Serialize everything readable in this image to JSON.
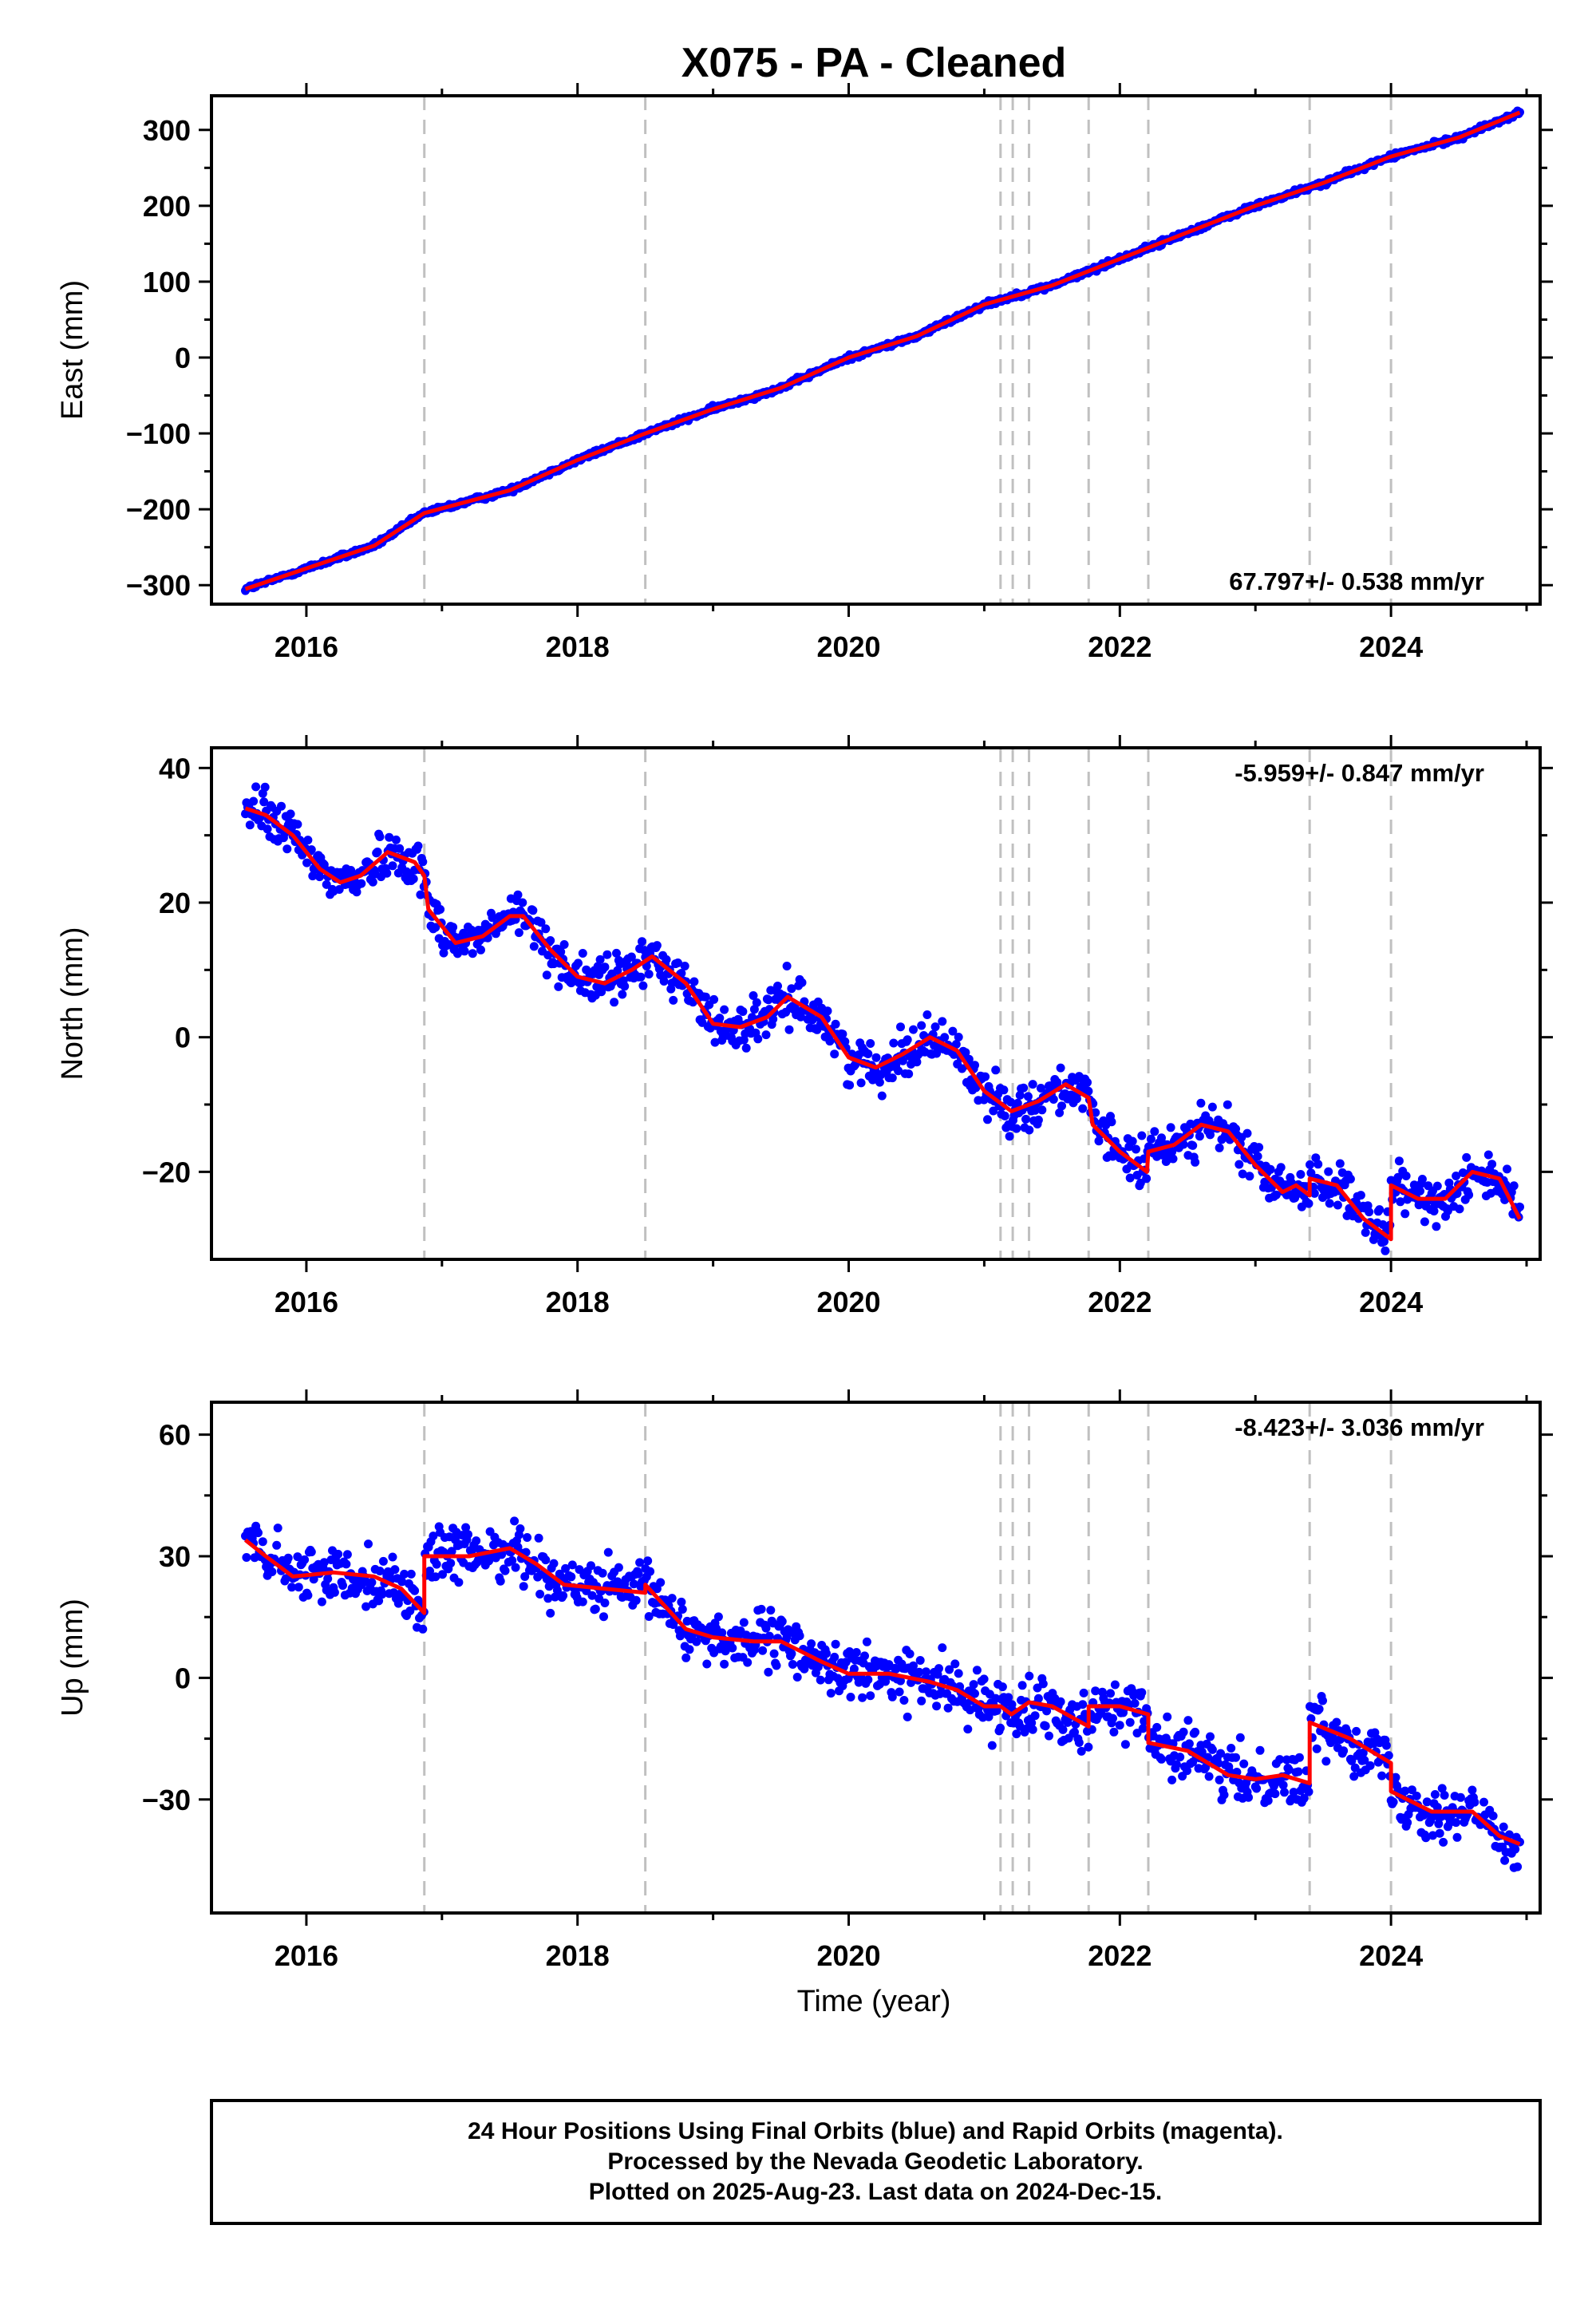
{
  "chart_data": {
    "type": "scatter",
    "title": "X075  - PA - Cleaned",
    "xlabel": "Time (year)",
    "xlim": [
      2015.3,
      2025.1
    ],
    "xticks": [
      2016,
      2018,
      2020,
      2022,
      2024
    ],
    "xtick_labels": [
      "2016",
      "2018",
      "2020",
      "2022",
      "2024"
    ],
    "point_color": "#0000ff",
    "fit_color": "#ff0000",
    "event_line_color": "#c0c0c0",
    "event_lines": [
      2016.87,
      2018.5,
      2021.12,
      2021.21,
      2021.33,
      2021.77,
      2022.21,
      2023.4,
      2024.0
    ],
    "panels": [
      {
        "id": "east",
        "ylabel": "East (mm)",
        "ylim": [
          -325,
          345
        ],
        "yticks": [
          -300,
          -200,
          -100,
          0,
          100,
          200,
          300
        ],
        "ytick_labels": [
          "−300",
          "−200",
          "−100",
          "0",
          "100",
          "200",
          "300"
        ],
        "rate_label": "67.797+/- 0.538 mm/yr",
        "rate_position": "bottom-right",
        "scatter_spread": 4,
        "fit": {
          "x": [
            2015.55,
            2016.0,
            2016.5,
            2016.87,
            2017.5,
            2018.0,
            2018.5,
            2019.0,
            2019.5,
            2020.0,
            2020.5,
            2021.0,
            2021.5,
            2022.0,
            2022.5,
            2023.0,
            2023.5,
            2024.0,
            2024.5,
            2024.95
          ],
          "y": [
            -305,
            -278,
            -248,
            -205,
            -175,
            -135,
            -100,
            -68,
            -40,
            0,
            28,
            70,
            95,
            130,
            165,
            200,
            230,
            265,
            290,
            323
          ]
        }
      },
      {
        "id": "north",
        "ylabel": "North (mm)",
        "ylim": [
          -33,
          43
        ],
        "yticks": [
          -20,
          0,
          20,
          40
        ],
        "ytick_labels": [
          "−20",
          "0",
          "20",
          "40"
        ],
        "rate_label": "-5.959+/- 0.847 mm/yr",
        "rate_position": "top-right",
        "scatter_spread": 4,
        "fit": {
          "x": [
            2015.55,
            2015.7,
            2015.9,
            2016.1,
            2016.25,
            2016.4,
            2016.6,
            2016.8,
            2016.87,
            2016.9,
            2017.1,
            2017.3,
            2017.5,
            2017.6,
            2017.8,
            2018.0,
            2018.2,
            2018.4,
            2018.55,
            2018.8,
            2019.0,
            2019.2,
            2019.4,
            2019.55,
            2019.8,
            2020.0,
            2020.2,
            2020.4,
            2020.6,
            2020.8,
            2021.0,
            2021.2,
            2021.4,
            2021.6,
            2021.77,
            2021.8,
            2022.0,
            2022.2,
            2022.21,
            2022.4,
            2022.6,
            2022.8,
            2023.0,
            2023.2,
            2023.3,
            2023.4,
            2023.4,
            2023.6,
            2023.8,
            2024.0,
            2024.0,
            2024.2,
            2024.4,
            2024.6,
            2024.8,
            2024.95
          ],
          "y": [
            34,
            33,
            30,
            25,
            23,
            24,
            27.5,
            26,
            24,
            19,
            14,
            15,
            18,
            18,
            13,
            9,
            8,
            10,
            12,
            8,
            2,
            1.5,
            3,
            6,
            3,
            -3,
            -4.5,
            -2.5,
            0,
            -2,
            -8,
            -11,
            -9.5,
            -7,
            -9,
            -13,
            -17,
            -20,
            -17,
            -16,
            -13,
            -14,
            -19,
            -23,
            -22,
            -23.5,
            -21,
            -22,
            -27,
            -30,
            -22,
            -24,
            -24,
            -20,
            -21,
            -27
          ]
        }
      },
      {
        "id": "up",
        "ylabel": "Up (mm)",
        "ylim": [
          -58,
          68
        ],
        "yticks": [
          -30,
          0,
          30,
          60
        ],
        "ytick_labels": [
          "−30",
          "0",
          "30",
          "60"
        ],
        "rate_label": "-8.423+/- 3.036 mm/yr",
        "rate_position": "top-right",
        "scatter_spread": 8,
        "fit": {
          "x": [
            2015.55,
            2015.7,
            2015.9,
            2016.2,
            2016.5,
            2016.7,
            2016.87,
            2016.87,
            2017.2,
            2017.5,
            2017.7,
            2017.9,
            2018.2,
            2018.5,
            2018.5,
            2018.8,
            2019.0,
            2019.3,
            2019.5,
            2019.8,
            2020.0,
            2020.3,
            2020.6,
            2020.8,
            2021.0,
            2021.12,
            2021.2,
            2021.33,
            2021.5,
            2021.77,
            2021.77,
            2022.0,
            2022.21,
            2022.21,
            2022.5,
            2022.8,
            2023.0,
            2023.2,
            2023.4,
            2023.4,
            2023.7,
            2024.0,
            2024.0,
            2024.3,
            2024.6,
            2024.8,
            2024.95
          ],
          "y": [
            34,
            30,
            25,
            26,
            25,
            22,
            16,
            30,
            30,
            32,
            28,
            23,
            22,
            21,
            23,
            12,
            10,
            9,
            9,
            4,
            1,
            1,
            -1,
            -3,
            -7,
            -7,
            -9,
            -6,
            -7,
            -12,
            -7,
            -7,
            -9,
            -16,
            -18,
            -24,
            -25,
            -24,
            -26,
            -11,
            -15,
            -21,
            -28,
            -33,
            -33,
            -39,
            -41
          ]
        }
      }
    ]
  },
  "footer": {
    "line1": "24 Hour Positions Using Final Orbits (blue) and Rapid Orbits (magenta).",
    "line2": "Processed by the Nevada Geodetic Laboratory.",
    "line3": "Plotted on 2025-Aug-23. Last data on 2024-Dec-15."
  }
}
